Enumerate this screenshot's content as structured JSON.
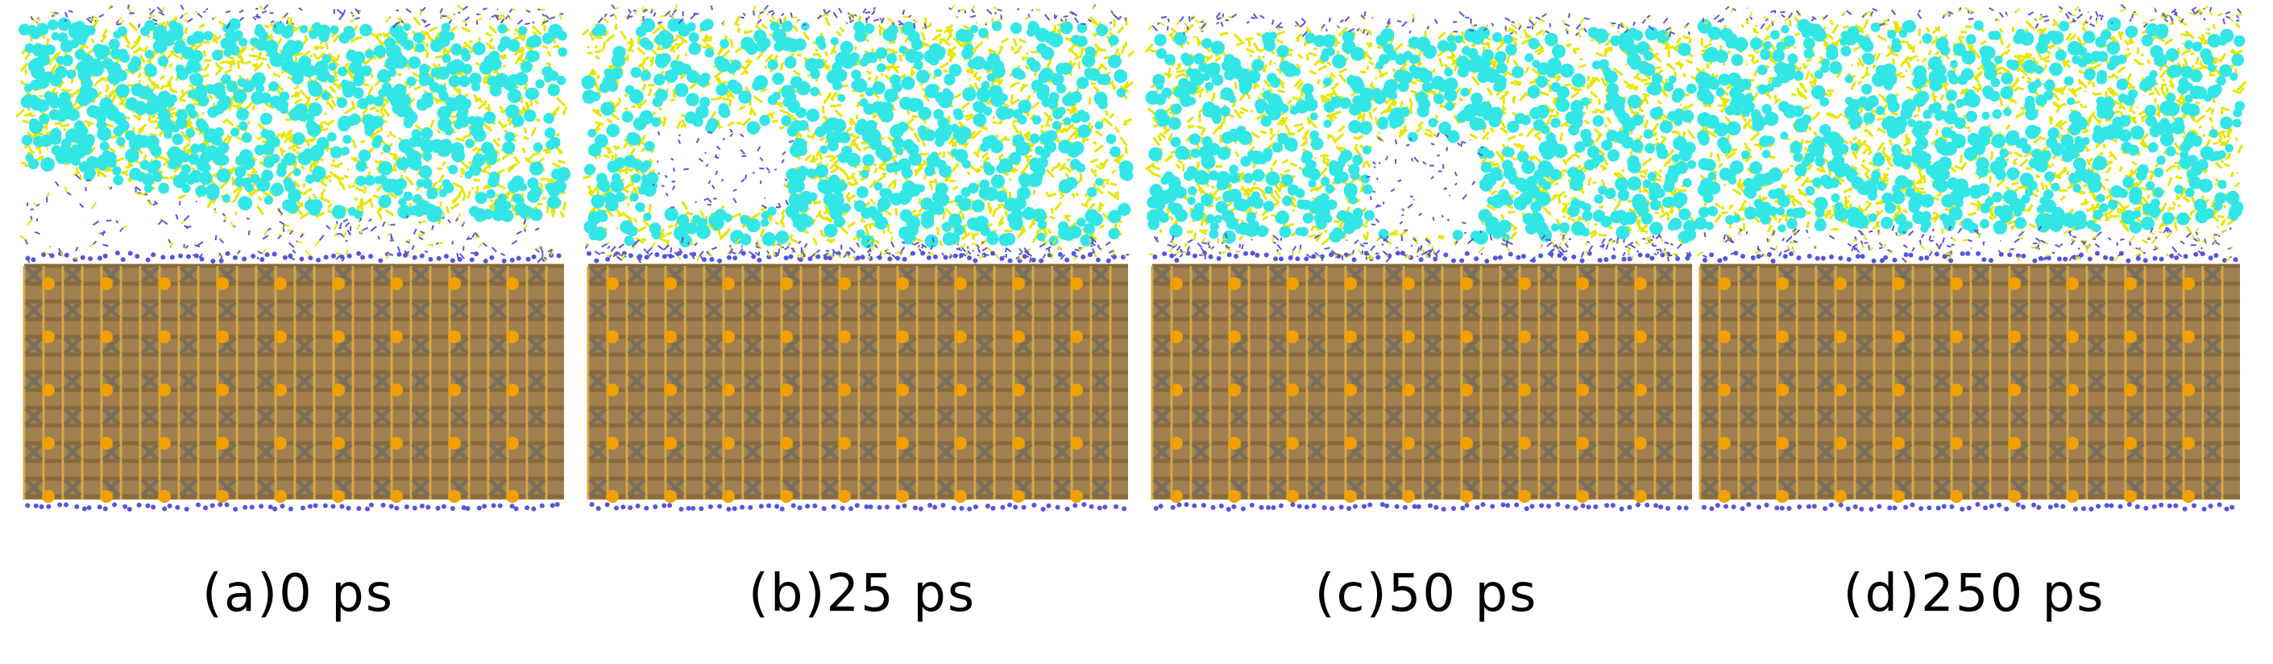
{
  "figure": {
    "panels": [
      {
        "caption": "(a)0 ps"
      },
      {
        "caption": "(b)25 ps"
      },
      {
        "caption": "(c)50 ps"
      },
      {
        "caption": "(d)250 ps"
      }
    ],
    "colors": {
      "cyan_atoms": "#33e6e6",
      "yellow_bonds": "#e6e600",
      "blue_atoms": "#5555dd",
      "orange_atoms": "#f0a000",
      "brown_bonds": "#8a6a3a",
      "gray_atoms": "#7a6f5a"
    }
  }
}
